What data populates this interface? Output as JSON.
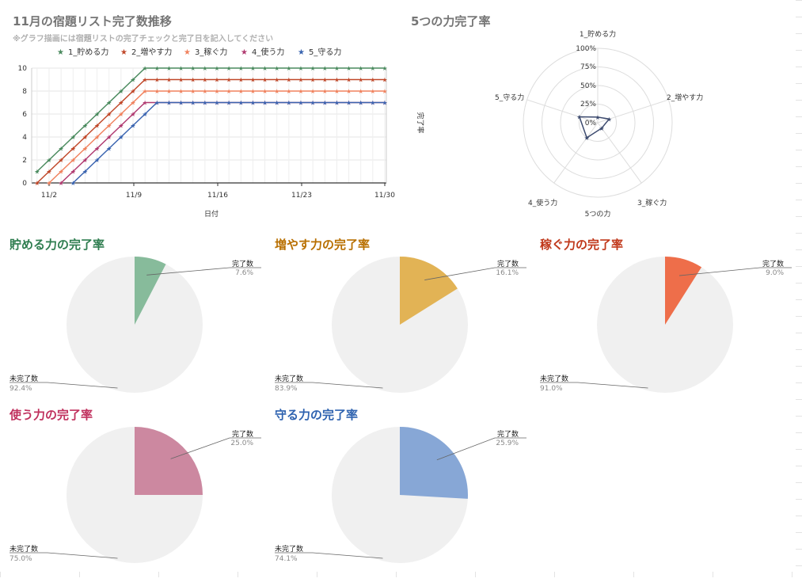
{
  "line_chart": {
    "title": "11月の宿題リスト完了数推移",
    "subtitle": "※グラフ描画には宿題リストの完了チェックと完了日を記入してください",
    "xlabel": "日付",
    "legend": [
      "1_貯める力",
      "2_増やす力",
      "3_稼ぐ力",
      "4_使う力",
      "5_守る力"
    ]
  },
  "radar_chart": {
    "title": "5つの力完了率",
    "axis_label": "完了率",
    "bottom_label": "5つの力",
    "axes": [
      "1_貯める力",
      "2_増やす力",
      "3_稼ぐ力",
      "4_使う力",
      "5_守る力"
    ],
    "ticks": [
      "0%",
      "25%",
      "50%",
      "75%",
      "100%"
    ]
  },
  "pies": [
    {
      "title": "貯める力の完了率",
      "color": "#87bb9b",
      "title_color": "#2e7d4f",
      "done_label": "完了数",
      "done_pct": "7.6%",
      "undone_label": "未完了数",
      "undone_pct": "92.4%"
    },
    {
      "title": "増やす力の完了率",
      "color": "#e2b355",
      "title_color": "#b86f00",
      "done_label": "完了数",
      "done_pct": "16.1%",
      "undone_label": "未完了数",
      "undone_pct": "83.9%"
    },
    {
      "title": "稼ぐ力の完了率",
      "color": "#ee6e4a",
      "title_color": "#c0381b",
      "done_label": "完了数",
      "done_pct": "9.0%",
      "undone_label": "未完了数",
      "undone_pct": "91.0%"
    },
    {
      "title": "使う力の完了率",
      "color": "#cc88a0",
      "title_color": "#c0315e",
      "done_label": "完了数",
      "done_pct": "25.0%",
      "undone_label": "未完了数",
      "undone_pct": "75.0%"
    },
    {
      "title": "守る力の完了率",
      "color": "#87a7d6",
      "title_color": "#2f63b0",
      "done_label": "完了数",
      "done_pct": "25.9%",
      "undone_label": "未完了数",
      "undone_pct": "74.1%"
    }
  ],
  "chart_data": [
    {
      "type": "line",
      "title": "11月の宿題リスト完了数推移",
      "subtitle": "※グラフ描画には宿題リストの完了チェックと完了日を記入してください",
      "xlabel": "日付",
      "ylabel": "",
      "x_ticks": [
        "11/2",
        "11/9",
        "11/16",
        "11/23",
        "11/30"
      ],
      "x_range": [
        "11/1",
        "11/30"
      ],
      "ylim": [
        0,
        10
      ],
      "y_ticks": [
        0,
        2,
        4,
        6,
        8,
        10
      ],
      "grid": true,
      "legend_position": "top",
      "series": [
        {
          "name": "1_貯める力",
          "color": "#4a8a5e",
          "start": "11/1",
          "start_value": 1,
          "step_per_day": 1,
          "plateau_value": 10,
          "plateau_from": "11/10"
        },
        {
          "name": "2_増やす力",
          "color": "#c0482a",
          "start": "11/1",
          "start_value": 0,
          "step_per_day": 1,
          "plateau_value": 9,
          "plateau_from": "11/10"
        },
        {
          "name": "3_稼ぐ力",
          "color": "#f0825e",
          "start": "11/2",
          "start_value": 0,
          "step_per_day": 1,
          "plateau_value": 8,
          "plateau_from": "11/10"
        },
        {
          "name": "4_使う力",
          "color": "#b03a70",
          "start": "11/3",
          "start_value": 0,
          "step_per_day": 1,
          "plateau_value": 7,
          "plateau_from": "11/10"
        },
        {
          "name": "5_守る力",
          "color": "#3a64b0",
          "start": "11/4",
          "start_value": 0,
          "step_per_day": 1,
          "plateau_value": 7,
          "plateau_from": "11/11"
        }
      ]
    },
    {
      "type": "radar",
      "title": "5つの力完了率",
      "categories": [
        "1_貯める力",
        "2_増やす力",
        "3_稼ぐ力",
        "4_使う力",
        "5_守る力"
      ],
      "values": [
        7.6,
        16.1,
        9.0,
        25.0,
        25.9
      ],
      "range": [
        0,
        100
      ],
      "ticks": [
        "0%",
        "25%",
        "50%",
        "75%",
        "100%"
      ]
    },
    {
      "type": "pie",
      "title": "貯める力の完了率",
      "labels": [
        "完了数",
        "未完了数"
      ],
      "values": [
        7.6,
        92.4
      ]
    },
    {
      "type": "pie",
      "title": "増やす力の完了率",
      "labels": [
        "完了数",
        "未完了数"
      ],
      "values": [
        16.1,
        83.9
      ]
    },
    {
      "type": "pie",
      "title": "稼ぐ力の完了率",
      "labels": [
        "完了数",
        "未完了数"
      ],
      "values": [
        9.0,
        91.0
      ]
    },
    {
      "type": "pie",
      "title": "使う力の完了率",
      "labels": [
        "完了数",
        "未完了数"
      ],
      "values": [
        25.0,
        75.0
      ]
    },
    {
      "type": "pie",
      "title": "守る力の完了率",
      "labels": [
        "完了数",
        "未完了数"
      ],
      "values": [
        25.9,
        74.1
      ]
    }
  ]
}
